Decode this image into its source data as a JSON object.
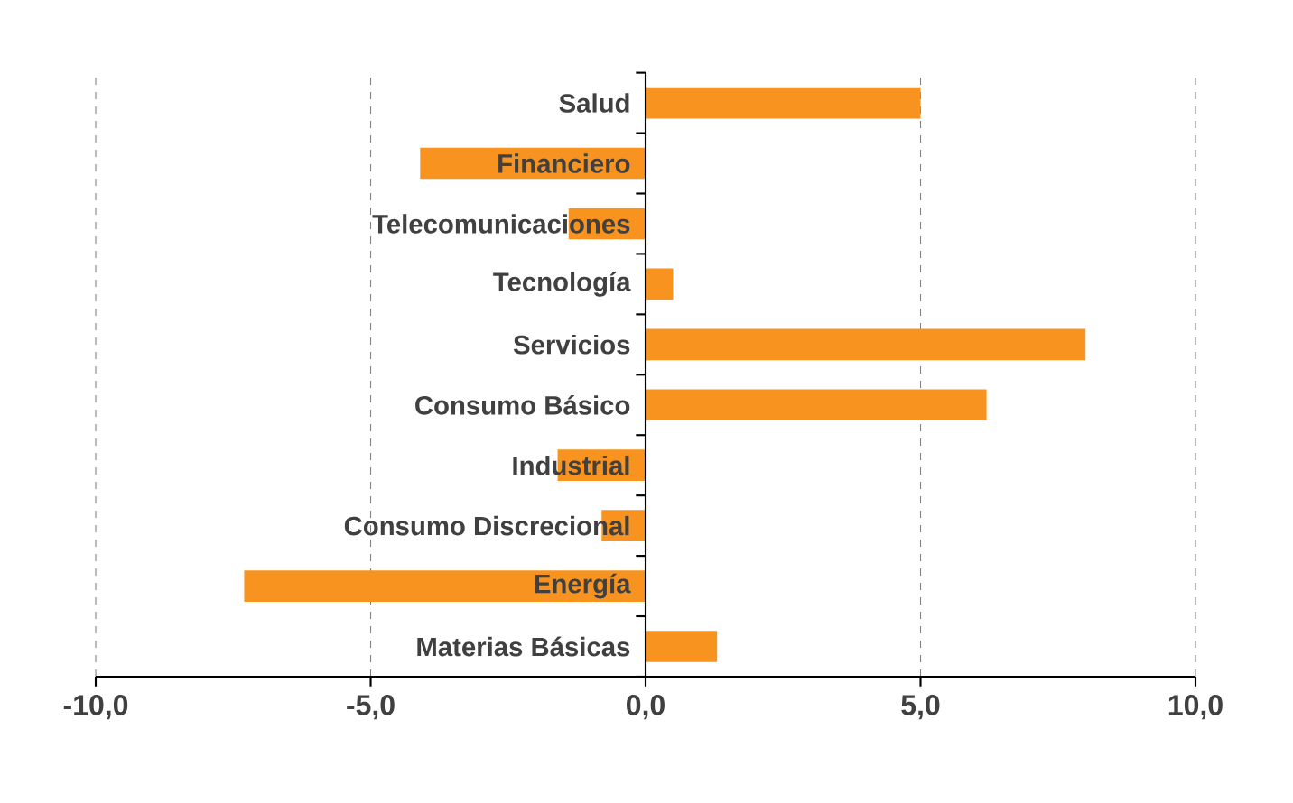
{
  "chart_data": {
    "type": "bar",
    "orientation": "horizontal",
    "categories": [
      "Salud",
      "Financiero",
      "Telecomunicaciones",
      "Tecnología",
      "Servicios",
      "Consumo Básico",
      "Industrial",
      "Consumo Discrecional",
      "Energía",
      "Materias Básicas"
    ],
    "values": [
      5.0,
      -4.1,
      -1.4,
      0.5,
      8.0,
      6.2,
      -1.6,
      -0.8,
      -7.3,
      1.3
    ],
    "color": "#f7931e",
    "xlim": [
      -10,
      10
    ],
    "xticks": [
      {
        "value": -10,
        "label": "-10,0"
      },
      {
        "value": -5,
        "label": "-5,0"
      },
      {
        "value": 0,
        "label": "0,0"
      },
      {
        "value": 5,
        "label": "5,0"
      },
      {
        "value": 10,
        "label": "10,0"
      }
    ],
    "grid": "x"
  }
}
